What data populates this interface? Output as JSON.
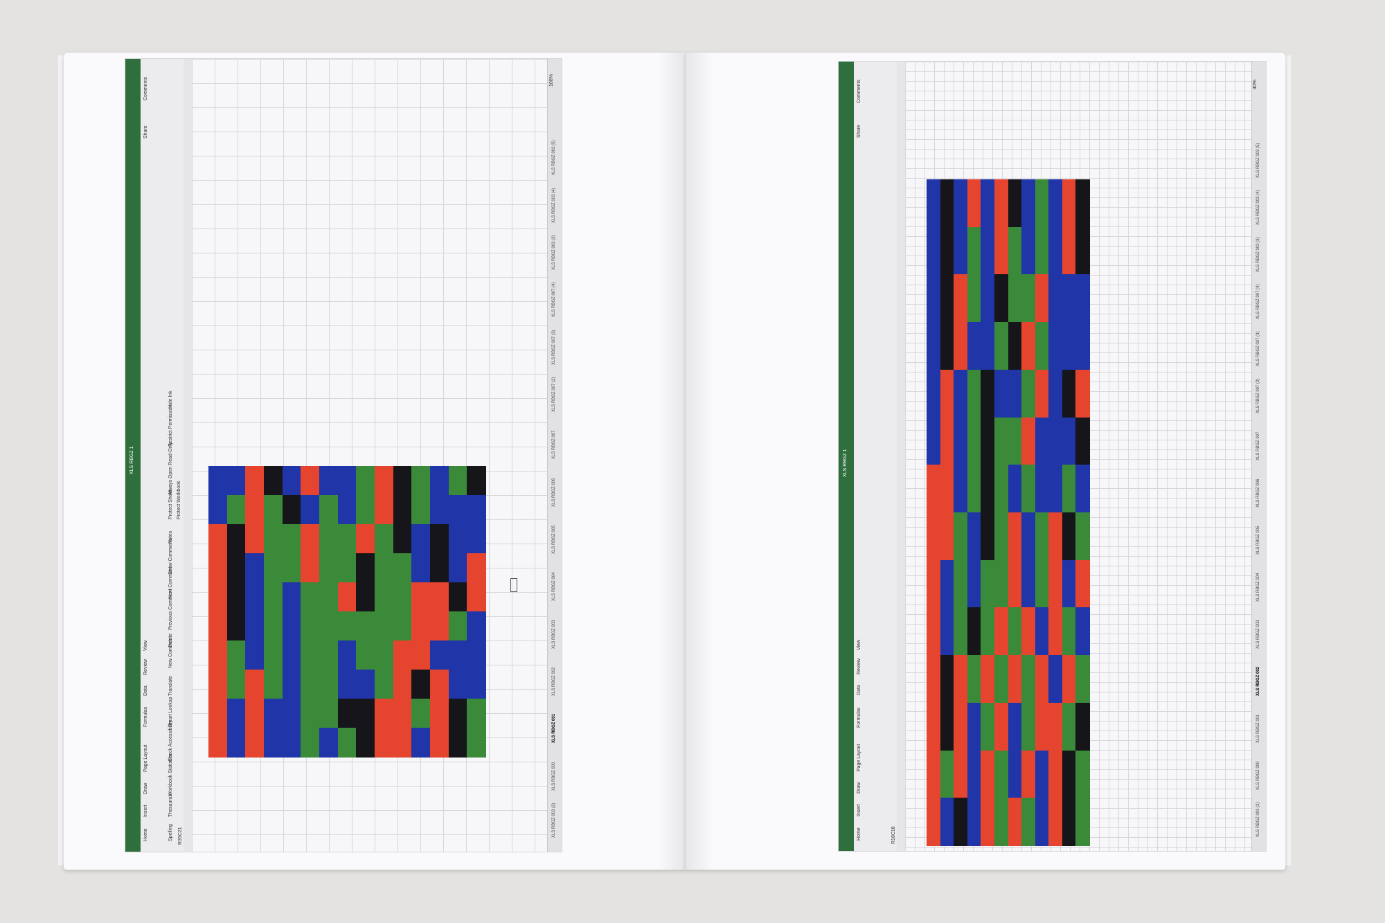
{
  "left_spread": {
    "window_title": "XLS RBGZ 1",
    "ribbon_tabs": [
      "Home",
      "Insert",
      "Draw",
      "Page Layout",
      "Formulas",
      "Data",
      "Review",
      "View"
    ],
    "ribbon_buttons": [
      "Spelling",
      "Thesaurus",
      "Workbook Statistics",
      "Check Accessibility",
      "Smart Lookup",
      "Translate",
      "New Comment",
      "Delete",
      "Previous Comment",
      "Next Comment",
      "Show Comments",
      "Notes",
      "Protect Sheet",
      "Protect Workbook",
      "Always Open Read-Only",
      "Restrict Permission",
      "Hide Ink"
    ],
    "share_label": "Share",
    "comments_label": "Comments",
    "cell_ref": "R35C21",
    "zoom": "100%",
    "sheet_tabs": [
      "XLS RBGZ 003 (2)",
      "XLS RBGZ 000",
      "XLS RBGZ 001",
      "XLS RBGZ 002",
      "XLS RBGZ 003",
      "XLS RBGZ 004",
      "XLS RBGZ 005",
      "XLS RBGZ 006",
      "XLS RBGZ 007",
      "XLS RBGZ 007 (2)",
      "XLS RBGZ 007 (3)",
      "XLS RBGZ 007 (4)",
      "XLS RBGZ 003 (3)",
      "XLS RBGZ 003 (4)",
      "XLS RBGZ 003 (5)"
    ],
    "active_sheet_index": 2,
    "colors": {
      "red": "#e5452f",
      "green": "#3a8a3a",
      "blue": "#1f35a8",
      "black": "#16161a"
    }
  },
  "right_spread": {
    "window_title": "XLS RBGZ 1",
    "ribbon_tabs": [
      "Home",
      "Insert",
      "Draw",
      "Page Layout",
      "Formulas",
      "Data",
      "Review",
      "View"
    ],
    "share_label": "Share",
    "comments_label": "Comments",
    "cell_ref": "R18C18",
    "zoom": "40%",
    "sheet_tabs": [
      "XLS RBGZ 003 (2)",
      "XLS RBGZ 000",
      "XLS RBGZ 001",
      "XLS RBGZ 002",
      "XLS RBGZ 003",
      "XLS RBGZ 004",
      "XLS RBGZ 005",
      "XLS RBGZ 006",
      "XLS RBGZ 007",
      "XLS RBGZ 007 (2)",
      "XLS RBGZ 007 (3)",
      "XLS RBGZ 007 (4)",
      "XLS RBGZ 003 (3)",
      "XLS RBGZ 003 (4)",
      "XLS RBGZ 003 (5)"
    ],
    "active_sheet_index": 3
  },
  "mosaic_left": {
    "cols": 15,
    "rows": 10,
    "pattern": [
      "BBRKBRBBGRKGBGK",
      "BGRGKBGBGRKGBBB",
      "RKRGGRGGRGKBKBB",
      "RKBGGRGGKGGBKBR",
      "RKBGBGGRKGGRRKR",
      "RKBGBGGGGGGRRGB",
      "RGBGBGGBGGRRBBB",
      "RGRGBGGBBGRKRBB",
      "RBRBBGGKKRRGRKG",
      "RBRBBGBGKRRBRKG"
    ]
  },
  "mosaic_right": {
    "cols": 12,
    "rows": 14,
    "pattern": [
      "BKBRBRKBGBRK",
      "BKBGBRGBGBRK",
      "BKRGBKGGRBBB",
      "BKRBBGKRGBBB",
      "BRBGKBBGRBKR",
      "BRBGKGGRBBBK",
      "RRBGKGBGBBGB",
      "RRGBKGRBGRKG",
      "RBGBGGRBGRBR",
      "RBGKGRGRBRGB",
      "RKRGRGRGRBRG",
      "RKRBGRBGRRGK",
      "RGRBRGBRBRKG",
      "RBKBRGRGBRKG"
    ]
  }
}
